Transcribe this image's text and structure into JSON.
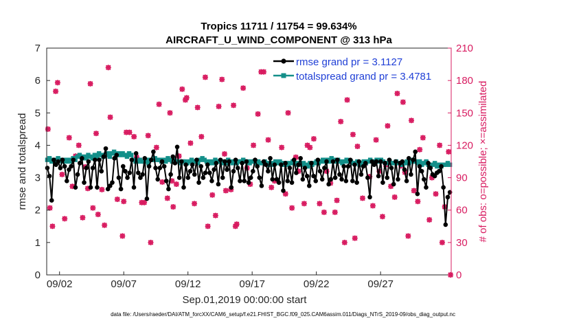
{
  "chart_data": {
    "type": "line",
    "title_line1": "Tropics 11711 / 11754 = 99.634%",
    "title_line2": "AIRCRAFT_U_WIND_COMPONENT @ 313 hPa",
    "ylabel_left": "rmse and totalspread",
    "ylabel_right": "# of obs: o=possible; ×=assimilated",
    "xlabel": "Sep.01,2019 00:00:00 start",
    "footnote": "data file: /Users/raeder/DAI/ATM_forcXX/CAM6_setup/f.e21.FHIST_BGC.f09_025.CAM6assim.011/Diags_NTrS_2019-09/obs_diag_output.nc",
    "x_range": [
      0,
      31.5
    ],
    "y_left_range": [
      0,
      7
    ],
    "y_right_range": [
      0,
      210
    ],
    "y_left_ticks": [
      "0",
      "1",
      "2",
      "3",
      "4",
      "5",
      "6",
      "7"
    ],
    "y_right_ticks": [
      "0",
      "30",
      "60",
      "90",
      "120",
      "150",
      "180",
      "210"
    ],
    "x_ticks": [
      {
        "pos": 1,
        "label": "09/02"
      },
      {
        "pos": 6,
        "label": "09/07"
      },
      {
        "pos": 11,
        "label": "09/12"
      },
      {
        "pos": 16,
        "label": "09/17"
      },
      {
        "pos": 21,
        "label": "09/22"
      },
      {
        "pos": 26,
        "label": "09/27"
      }
    ],
    "legend": [
      {
        "label": "rmse grand pr = 3.1127",
        "color": "#000000"
      },
      {
        "label": "totalspread grand pr = 3.4781",
        "color": "#00808a"
      }
    ],
    "colors": {
      "rmse": "#000000",
      "spread": "#138f89",
      "obs": "#d81b60"
    },
    "rmse": [
      3.3,
      3.05,
      2.3,
      3.55,
      3.4,
      3.5,
      3.3,
      3.55,
      3.35,
      2.9,
      3.25,
      3.35,
      3.55,
      2.7,
      3.1,
      3.45,
      3.6,
      2.85,
      3.3,
      3.5,
      2.7,
      3.3,
      3.55,
      2.7,
      3.55,
      3.2,
      3.65,
      3.9,
      2.65,
      2.75,
      2.85,
      3.6,
      3.7,
      3.0,
      2.65,
      3.35,
      3.2,
      3.0,
      3.15,
      3.55,
      2.7,
      3.75,
      3.15,
      3.0,
      3.1,
      3.6,
      2.35,
      3.35,
      3.55,
      3.8,
      3.3,
      2.95,
      3.3,
      3.5,
      3.35,
      2.9,
      2.65,
      3.1,
      3.65,
      3.45,
      3.95,
      3.0,
      3.5,
      2.7,
      3.4,
      3.0,
      3.2,
      3.4,
      3.1,
      3.55,
      2.85,
      3.35,
      3.0,
      3.15,
      3.4,
      3.15,
      2.9,
      3.25,
      3.45,
      2.8,
      3.55,
      3.0,
      3.5,
      3.25,
      3.5,
      2.7,
      3.2,
      3.55,
      3.3,
      2.9,
      3.45,
      2.9,
      3.5,
      2.85,
      3.0,
      3.2,
      3.55,
      3.35,
      3.0,
      2.75,
      3.5,
      3.4,
      3.2,
      3.6,
      2.95,
      3.4,
      2.95,
      2.85,
      3.4,
      2.6,
      3.45,
      2.9,
      3.3,
      2.85,
      3.55,
      3.15,
      3.4,
      3.6,
      2.95,
      3.3,
      3.05,
      2.75,
      3.45,
      3.05,
      2.9,
      3.55,
      3.2,
      2.95,
      3.3,
      3.5,
      2.8,
      2.95,
      3.5,
      3.0,
      3.55,
      3.1,
      2.95,
      3.35,
      2.9,
      3.35,
      3.55,
      2.9,
      3.4,
      2.85,
      3.5,
      3.1,
      3.35,
      3.45,
      3.0,
      2.4,
      3.5,
      3.4,
      3.5,
      3.05,
      3.5,
      2.85,
      3.45,
      3.0,
      3.55,
      3.3,
      2.8,
      3.5,
      2.95,
      3.45,
      3.5,
      3.25,
      2.9,
      3.6,
      3.1,
      3.55,
      3.8,
      2.5,
      3.35,
      3.2,
      2.95,
      2.7,
      3.45,
      3.3,
      3.1,
      3.05,
      3.15,
      3.2,
      3.35,
      2.7,
      1.55,
      2.4,
      2.55
    ],
    "spread": [
      3.55,
      3.6,
      3.5,
      3.55,
      3.5,
      3.6,
      3.55,
      3.5,
      3.55,
      3.5,
      3.55,
      3.5,
      3.6,
      3.55,
      3.65,
      3.7,
      3.6,
      3.65,
      3.6,
      3.7,
      3.65,
      3.6,
      3.7,
      3.65,
      3.75,
      3.7,
      3.65,
      3.7,
      3.75,
      3.65,
      3.75,
      3.8,
      3.7,
      3.75,
      3.7,
      3.75,
      3.7,
      3.65,
      3.75,
      3.7,
      3.55,
      3.5,
      3.5,
      3.55,
      3.5,
      3.5,
      3.55,
      3.45,
      3.55,
      3.55,
      3.6,
      3.55,
      3.55,
      3.5,
      3.55,
      3.5,
      3.6,
      3.55,
      3.5,
      3.55,
      3.5,
      3.5,
      3.45,
      3.5,
      3.5,
      3.45,
      3.5,
      3.55,
      3.5,
      3.5,
      3.45,
      3.55,
      3.6,
      3.55,
      3.5,
      3.45,
      3.5,
      3.45,
      3.55,
      3.5,
      3.5,
      3.45,
      3.5,
      3.45,
      3.55,
      3.5,
      3.45,
      3.5,
      3.45,
      3.5,
      3.5,
      3.55,
      3.5,
      3.5,
      3.45,
      3.5,
      3.5,
      3.45,
      3.5,
      3.45,
      3.45,
      3.5,
      3.45,
      3.4,
      3.45,
      3.4,
      3.5,
      3.45,
      3.5,
      3.45,
      3.4,
      3.45,
      3.4,
      3.45,
      3.5,
      3.45,
      3.4,
      3.45,
      3.4,
      3.45,
      3.4,
      3.35,
      3.45,
      3.4,
      3.45,
      3.5,
      3.45,
      3.5,
      3.55,
      3.5,
      3.55,
      3.5,
      3.6,
      3.55,
      3.5,
      3.55,
      3.5,
      3.45,
      3.5,
      3.55,
      3.5,
      3.5,
      3.45,
      3.45,
      3.5,
      3.4,
      3.45,
      3.5,
      3.45,
      3.5,
      3.55,
      3.5,
      3.5,
      3.55,
      3.5,
      3.55,
      3.5,
      3.45,
      3.45,
      3.5,
      3.45,
      3.45,
      3.5,
      3.45,
      3.45,
      3.4,
      3.45,
      3.5,
      3.45,
      3.5,
      3.55,
      3.5,
      3.45,
      3.5,
      3.4,
      3.45,
      3.5,
      3.4,
      3.35,
      3.4,
      3.45,
      3.35,
      3.4,
      3.35,
      3.4,
      3.4,
      3.45,
      3.4
    ],
    "obs_points": [
      [
        0.1,
        135
      ],
      [
        0.25,
        62
      ],
      [
        0.45,
        45
      ],
      [
        0.7,
        170
      ],
      [
        0.85,
        178
      ],
      [
        1.2,
        93
      ],
      [
        1.4,
        52
      ],
      [
        1.75,
        127
      ],
      [
        2.0,
        82
      ],
      [
        2.25,
        110
      ],
      [
        2.5,
        120
      ],
      [
        2.8,
        53
      ],
      [
        3.0,
        100
      ],
      [
        3.2,
        80
      ],
      [
        3.4,
        177
      ],
      [
        3.6,
        62
      ],
      [
        3.85,
        131
      ],
      [
        4.0,
        56
      ],
      [
        4.3,
        79
      ],
      [
        4.5,
        46
      ],
      [
        4.8,
        192
      ],
      [
        4.95,
        146
      ],
      [
        5.5,
        70
      ],
      [
        5.9,
        36
      ],
      [
        6.0,
        68
      ],
      [
        6.2,
        132
      ],
      [
        6.45,
        132
      ],
      [
        6.8,
        128
      ],
      [
        7.0,
        109
      ],
      [
        7.4,
        67
      ],
      [
        7.6,
        67
      ],
      [
        7.9,
        129
      ],
      [
        8.1,
        30
      ],
      [
        8.55,
        118
      ],
      [
        8.75,
        158
      ],
      [
        9.0,
        86
      ],
      [
        9.4,
        71
      ],
      [
        9.6,
        150
      ],
      [
        9.75,
        87
      ],
      [
        9.85,
        63
      ],
      [
        10.1,
        84
      ],
      [
        10.3,
        110
      ],
      [
        10.55,
        172
      ],
      [
        10.8,
        162
      ],
      [
        10.9,
        164
      ],
      [
        11.2,
        122
      ],
      [
        11.5,
        66
      ],
      [
        11.75,
        155
      ],
      [
        12.05,
        128
      ],
      [
        12.35,
        183
      ],
      [
        12.55,
        45
      ],
      [
        12.9,
        74
      ],
      [
        13.15,
        55
      ],
      [
        13.4,
        156
      ],
      [
        13.65,
        181
      ],
      [
        13.85,
        112
      ],
      [
        13.95,
        78
      ],
      [
        14.35,
        79
      ],
      [
        14.55,
        157
      ],
      [
        14.7,
        45
      ],
      [
        14.8,
        47
      ],
      [
        15.3,
        173
      ],
      [
        15.6,
        99
      ],
      [
        15.85,
        84
      ],
      [
        16.1,
        120
      ],
      [
        16.45,
        149
      ],
      [
        16.7,
        188
      ],
      [
        16.9,
        188
      ],
      [
        17.25,
        125
      ],
      [
        17.5,
        81
      ],
      [
        17.75,
        87
      ],
      [
        18.3,
        118
      ],
      [
        18.6,
        75
      ],
      [
        18.8,
        150
      ],
      [
        19.1,
        62
      ],
      [
        19.4,
        109
      ],
      [
        19.6,
        96
      ],
      [
        20.05,
        66
      ],
      [
        20.3,
        120
      ],
      [
        20.5,
        118
      ],
      [
        20.8,
        126
      ],
      [
        21.1,
        187
      ],
      [
        21.25,
        66
      ],
      [
        21.6,
        58
      ],
      [
        21.8,
        96
      ],
      [
        22.1,
        85
      ],
      [
        22.45,
        58
      ],
      [
        22.6,
        69
      ],
      [
        22.9,
        142
      ],
      [
        23.2,
        30
      ],
      [
        23.4,
        162
      ],
      [
        23.85,
        130
      ],
      [
        24.0,
        34
      ],
      [
        24.2,
        119
      ],
      [
        24.6,
        71
      ],
      [
        24.8,
        103
      ],
      [
        25.15,
        91
      ],
      [
        25.4,
        64
      ],
      [
        25.65,
        125
      ],
      [
        25.9,
        96
      ],
      [
        26.15,
        54
      ],
      [
        26.4,
        102
      ],
      [
        26.55,
        138
      ],
      [
        26.8,
        82
      ],
      [
        27.1,
        72
      ],
      [
        27.3,
        168
      ],
      [
        27.6,
        101
      ],
      [
        27.75,
        160
      ],
      [
        27.9,
        95
      ],
      [
        28.15,
        36
      ],
      [
        28.4,
        143
      ],
      [
        28.6,
        78
      ],
      [
        28.9,
        68
      ],
      [
        29.05,
        116
      ],
      [
        29.3,
        127
      ],
      [
        29.55,
        104
      ],
      [
        29.8,
        51
      ],
      [
        30.0,
        90
      ],
      [
        30.3,
        75
      ],
      [
        30.6,
        120
      ],
      [
        30.8,
        30
      ],
      [
        31.0,
        63
      ],
      [
        31.3,
        114
      ],
      [
        31.45,
        0
      ]
    ]
  }
}
